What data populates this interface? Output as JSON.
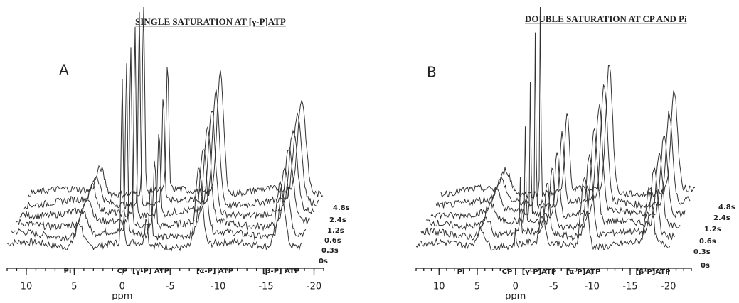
{
  "panels": [
    {
      "title": "SINGLE SATURATION AT [γ-P]ATP",
      "label": "A",
      "xlabel": "ppm",
      "xlim": [
        12,
        -21
      ],
      "xticks": [
        10,
        5,
        0,
        -5,
        -10,
        -15,
        -20
      ],
      "peak_labels": [
        "Pi",
        "CP",
        "[γ-P] ATP",
        "[α-P] ATP",
        "[β-P] ATP"
      ],
      "time_labels": [
        "4.8s",
        "2.4s",
        "1.2s",
        "0.6s",
        "0.3s",
        "0s"
      ]
    },
    {
      "title": "DOUBLE SATURATION AT CP AND Pi",
      "label": "B",
      "xlabel": "ppm",
      "xlim": [
        13,
        -23
      ],
      "xticks": [
        10,
        5,
        0,
        -5,
        -10,
        -15,
        -20
      ],
      "peak_labels": [
        "Pi",
        "CP",
        "[γ-P]ATP",
        "[α-P]ATP",
        "[β-P]ATP"
      ],
      "time_labels": [
        "4.8s",
        "2.4s",
        "1.2s",
        "0.6s",
        "0.3s",
        "0s"
      ]
    }
  ]
}
